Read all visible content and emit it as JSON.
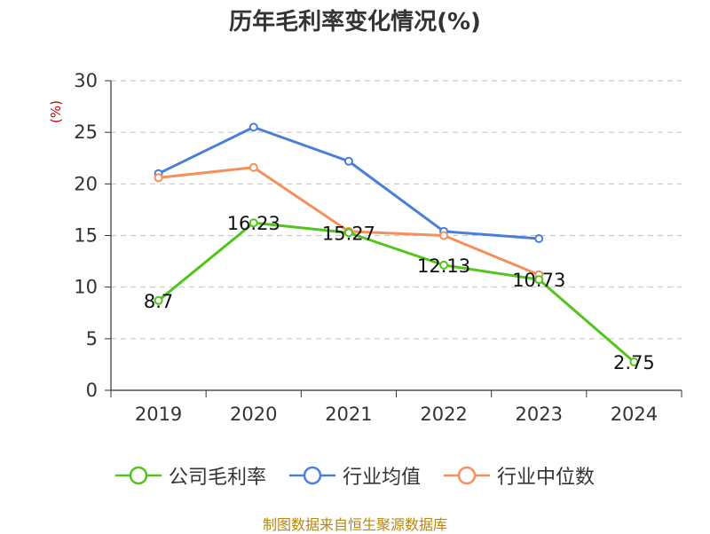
{
  "title": "历年毛利率变化情况(%)",
  "footer": "制图数据来自恒生聚源数据库",
  "chart_data": {
    "type": "line",
    "title": "历年毛利率变化情况(%)",
    "ylabel": "(%)",
    "ylim": [
      0,
      30
    ],
    "yticks": [
      0,
      5,
      10,
      15,
      20,
      25,
      30
    ],
    "categories": [
      "2019",
      "2020",
      "2021",
      "2022",
      "2023",
      "2024"
    ],
    "grid": true,
    "legend": "bottom",
    "series": [
      {
        "name": "公司毛利率",
        "color": "#52c41a",
        "values": [
          8.7,
          16.23,
          15.27,
          12.13,
          10.73,
          2.75
        ],
        "labels": [
          "8.7",
          "16.23",
          "15.27",
          "12.13",
          "10.73",
          "2.75"
        ]
      },
      {
        "name": "行业均值",
        "color": "#4a7fd9",
        "values": [
          21.0,
          25.5,
          22.2,
          15.4,
          14.7,
          null
        ]
      },
      {
        "name": "行业中位数",
        "color": "#f3905b",
        "values": [
          20.6,
          21.6,
          15.4,
          15.0,
          11.2,
          null
        ]
      }
    ]
  }
}
